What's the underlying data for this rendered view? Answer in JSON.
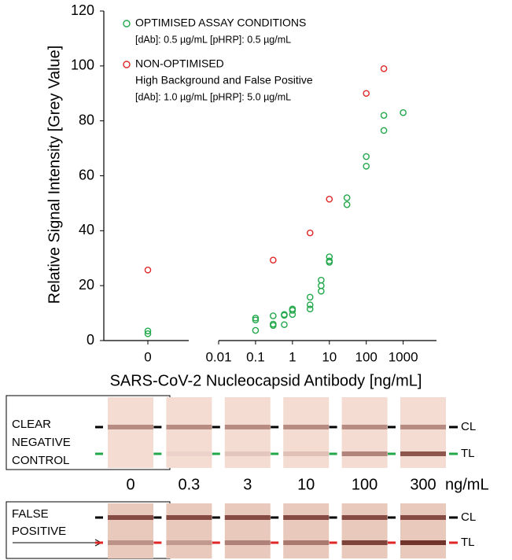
{
  "chart_data": {
    "type": "scatter",
    "ylabel": "Relative Signal Intensity [Grey Value]",
    "xlabel": "SARS-CoV-2 Nucleocapsid Antibody [ng/mL]",
    "ylim": [
      0,
      120
    ],
    "yticks": [
      0,
      20,
      40,
      60,
      80,
      100,
      120
    ],
    "xscale": "log",
    "xlim": [
      0.01,
      8000
    ],
    "xticks": [
      0.01,
      0.1,
      1,
      10,
      100,
      1000
    ],
    "x_zero_tick": 0,
    "series": [
      {
        "name": "OPTIMISED ASSAY CONDITIONS",
        "details": [
          "[dAb]: 0.5 µg/mL   [pHRP]: 0.5 µg/mL"
        ],
        "color": "#22a84a",
        "x": [
          0,
          0,
          0.1,
          0.1,
          0.1,
          0.3,
          0.3,
          0.3,
          0.6,
          0.6,
          0.6,
          1,
          1,
          1,
          3,
          3,
          3,
          6,
          6,
          6,
          10,
          10,
          10,
          30,
          30,
          100,
          100,
          300,
          300,
          1000
        ],
        "values": [
          3.5,
          2.5,
          3.7,
          7.5,
          8.2,
          5.5,
          6,
          9,
          5.8,
          9.2,
          9.5,
          9.5,
          11,
          11.5,
          11.5,
          13,
          15.8,
          18,
          20,
          22,
          28.5,
          29,
          30.5,
          49.5,
          52,
          63.5,
          67,
          76.5,
          82,
          83
        ]
      },
      {
        "name": "NON-OPTIMISED",
        "details": [
          "High Background and False Positive",
          "[dAb]: 1.0 µg/mL   [pHRP]: 5.0 µg/mL"
        ],
        "color": "#e02626",
        "x": [
          0,
          0.3,
          3,
          10,
          100,
          300
        ],
        "values": [
          25.7,
          29.3,
          39.2,
          51.5,
          90,
          99
        ]
      }
    ]
  },
  "strips": {
    "concentrations": [
      0,
      0.3,
      3,
      10,
      100,
      300
    ],
    "unit": "ng/mL",
    "line_labels": [
      "CL",
      "TL"
    ],
    "rows": [
      {
        "label": [
          "CLEAR",
          "NEGATIVE",
          "CONTROL"
        ],
        "tl_color": "#22a84a"
      },
      {
        "label": [
          "FALSE",
          "POSITIVE"
        ],
        "tl_color": "#e02626"
      }
    ]
  }
}
